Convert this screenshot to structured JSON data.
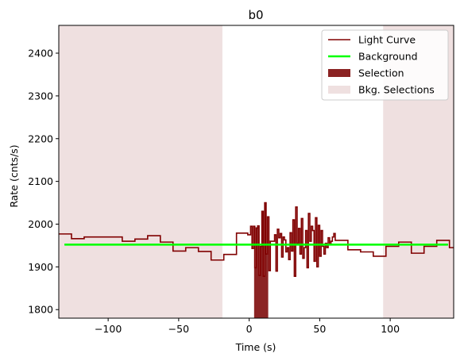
{
  "chart_data": {
    "type": "line",
    "title": "b0",
    "xlabel": "Time (s)",
    "ylabel": "Rate (cnts/s)",
    "xlim": [
      -135,
      145
    ],
    "ylim": [
      1780,
      2465
    ],
    "xticks": [
      -100,
      -50,
      0,
      50,
      100
    ],
    "yticks": [
      1800,
      1900,
      2000,
      2100,
      2200,
      2300,
      2400
    ],
    "grid": false,
    "legend_position": "top-right",
    "colors": {
      "light_curve": "#800000",
      "background": "#00ff00",
      "selection": "#8b2323",
      "bkg_selection": "#efe0e0"
    },
    "legend": [
      {
        "label": "Light Curve",
        "kind": "line",
        "color": "#800000"
      },
      {
        "label": "Background",
        "kind": "line",
        "color": "#00ff00"
      },
      {
        "label": "Selection",
        "kind": "patch",
        "color": "#8b2323"
      },
      {
        "label": "Bkg. Selections",
        "kind": "patch",
        "color": "#efe0e0"
      }
    ],
    "background_level": 1952,
    "background_range": [
      -131,
      141
    ],
    "selection_range": [
      3.5,
      13.5
    ],
    "bkg_selections": [
      [
        -135,
        -19
      ],
      [
        95,
        145
      ]
    ],
    "light_curve": {
      "name": "Light Curve",
      "edges": [
        -135,
        -126,
        -117,
        -108,
        -99,
        -90,
        -81,
        -72,
        -63,
        -54,
        -45,
        -36,
        -27,
        -18,
        -9,
        -1,
        0,
        1,
        2,
        3,
        4,
        5,
        6,
        7,
        8,
        9,
        10,
        11,
        12,
        13,
        14,
        15,
        16,
        17,
        18,
        19,
        20,
        21,
        22,
        23,
        24,
        25,
        26,
        27,
        28,
        29,
        30,
        31,
        32,
        33,
        34,
        35,
        36,
        37,
        38,
        39,
        40,
        41,
        42,
        43,
        44,
        45,
        46,
        47,
        48,
        49,
        50,
        51,
        52,
        53,
        54,
        55,
        56,
        57,
        58,
        59,
        60,
        61,
        70,
        79,
        88,
        97,
        106,
        115,
        124,
        133,
        142,
        145
      ],
      "values": [
        1977,
        1966,
        1970,
        1970,
        1970,
        1960,
        1965,
        1973,
        1958,
        1937,
        1945,
        1936,
        1916,
        1929,
        1979,
        1975,
        1975,
        1995,
        1943,
        1995,
        1898,
        1991,
        1996,
        1880,
        1948,
        2030,
        1878,
        2050,
        1930,
        2017,
        1891,
        1960,
        1960,
        1960,
        1975,
        1890,
        1988,
        1968,
        1978,
        1923,
        1970,
        1963,
        1935,
        1945,
        1917,
        1980,
        1937,
        2010,
        1878,
        2040,
        1955,
        1990,
        1930,
        2013,
        1920,
        1945,
        1985,
        1898,
        2025,
        1960,
        1995,
        1985,
        1913,
        2015,
        1900,
        1997,
        1925,
        1985,
        1948,
        1930,
        1955,
        1945,
        1968,
        1953,
        1960,
        1970,
        1978,
        1962,
        1940,
        1935,
        1925,
        1948,
        1958,
        1932,
        1948,
        1962,
        1945
      ]
    }
  }
}
